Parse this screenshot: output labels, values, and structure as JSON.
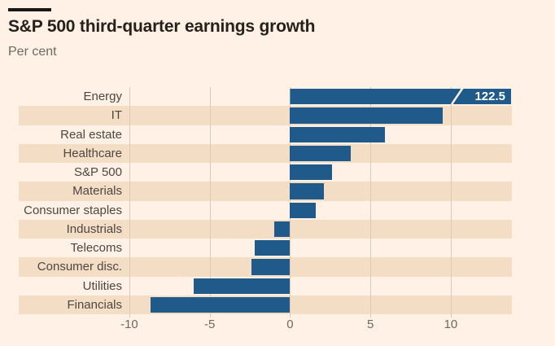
{
  "header": {
    "title": "S&P 500 third-quarter earnings growth",
    "subtitle": "Per cent"
  },
  "chart_data": {
    "type": "bar",
    "orientation": "horizontal",
    "title": "S&P 500 third-quarter earnings growth",
    "xlabel": "Per cent",
    "categories": [
      "Energy",
      "IT",
      "Real estate",
      "Healthcare",
      "S&P 500",
      "Materials",
      "Consumer staples",
      "Industrials",
      "Telecoms",
      "Consumer disc.",
      "Utilities",
      "Financials"
    ],
    "values": [
      122.5,
      9.5,
      5.9,
      3.8,
      2.6,
      2.1,
      1.6,
      -1.0,
      -2.2,
      -2.4,
      -6.0,
      -8.7
    ],
    "truncated_bar": {
      "category": "Energy",
      "label": "122.5"
    },
    "x_ticks": [
      -10,
      -5,
      0,
      5,
      10
    ],
    "xlim": [
      -10.2,
      13.8
    ],
    "grid": true,
    "legend": "none",
    "row_striping": "alternate",
    "colors": {
      "bar": "#1f5a8a",
      "background": "#fff1e5",
      "stripe": "#f4ddc5",
      "gridline": "#d9cbbc",
      "truncation_label_text": "#ffffff",
      "title_text": "#26211c",
      "subtitle_text": "#6f6961",
      "category_text": "#4d4742",
      "tick_text": "#6f6961"
    }
  }
}
